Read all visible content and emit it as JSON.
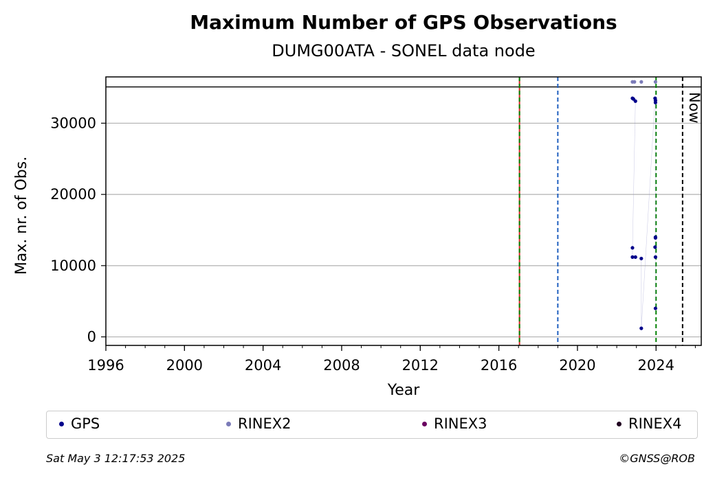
{
  "chart_data": {
    "type": "scatter",
    "title": "Maximum Number of GPS Observations",
    "subtitle": "DUMG00ATA - SONEL data node",
    "xlabel": "Year",
    "ylabel": "Max. nr. of Obs.",
    "xlim": [
      1996,
      2026.3
    ],
    "ylim": [
      -1200,
      36500
    ],
    "xticks_major": [
      "1996",
      "2000",
      "2004",
      "2008",
      "2012",
      "2016",
      "2020",
      "2024"
    ],
    "yticks": [
      "0",
      "10000",
      "20000",
      "30000"
    ],
    "grid": "horizontal",
    "reference_line_y": 35100,
    "vlines": [
      {
        "x": 2017.05,
        "color": "#d62728",
        "style": "solid"
      },
      {
        "x": 2017.05,
        "color": "#008000",
        "style": "dashed"
      },
      {
        "x": 2019.0,
        "color": "#1f5fbf",
        "style": "dashed"
      },
      {
        "x": 2024.0,
        "color": "#008000",
        "style": "dashed"
      },
      {
        "x": 2025.35,
        "color": "#000000",
        "style": "dashed",
        "label": "Now"
      }
    ],
    "series": [
      {
        "name": "GPS",
        "color": "#00008b",
        "points": [
          {
            "x": 2022.8,
            "y": 33500
          },
          {
            "x": 2022.85,
            "y": 33400
          },
          {
            "x": 2022.95,
            "y": 33100
          },
          {
            "x": 2022.8,
            "y": 12500
          },
          {
            "x": 2022.8,
            "y": 11200
          },
          {
            "x": 2022.95,
            "y": 11200
          },
          {
            "x": 2023.25,
            "y": 11000
          },
          {
            "x": 2023.25,
            "y": 1200
          },
          {
            "x": 2023.95,
            "y": 33500
          },
          {
            "x": 2023.97,
            "y": 33200
          },
          {
            "x": 2023.97,
            "y": 32900
          },
          {
            "x": 2023.97,
            "y": 14000
          },
          {
            "x": 2023.97,
            "y": 13900
          },
          {
            "x": 2023.95,
            "y": 12600
          },
          {
            "x": 2023.97,
            "y": 11200
          },
          {
            "x": 2023.97,
            "y": 4000
          }
        ]
      },
      {
        "name": "RINEX2",
        "color": "#7b7bb8",
        "points": [
          {
            "x": 2022.8,
            "y": 35800
          },
          {
            "x": 2022.9,
            "y": 35800
          },
          {
            "x": 2023.25,
            "y": 35800
          },
          {
            "x": 2023.97,
            "y": 35800
          }
        ]
      },
      {
        "name": "RINEX3",
        "color": "#6a0060",
        "points": []
      },
      {
        "name": "RINEX4",
        "color": "#200020",
        "points": []
      }
    ]
  },
  "footer": {
    "timestamp": "Sat May  3 12:17:53 2025",
    "copyright": "©GNSS@ROB"
  }
}
